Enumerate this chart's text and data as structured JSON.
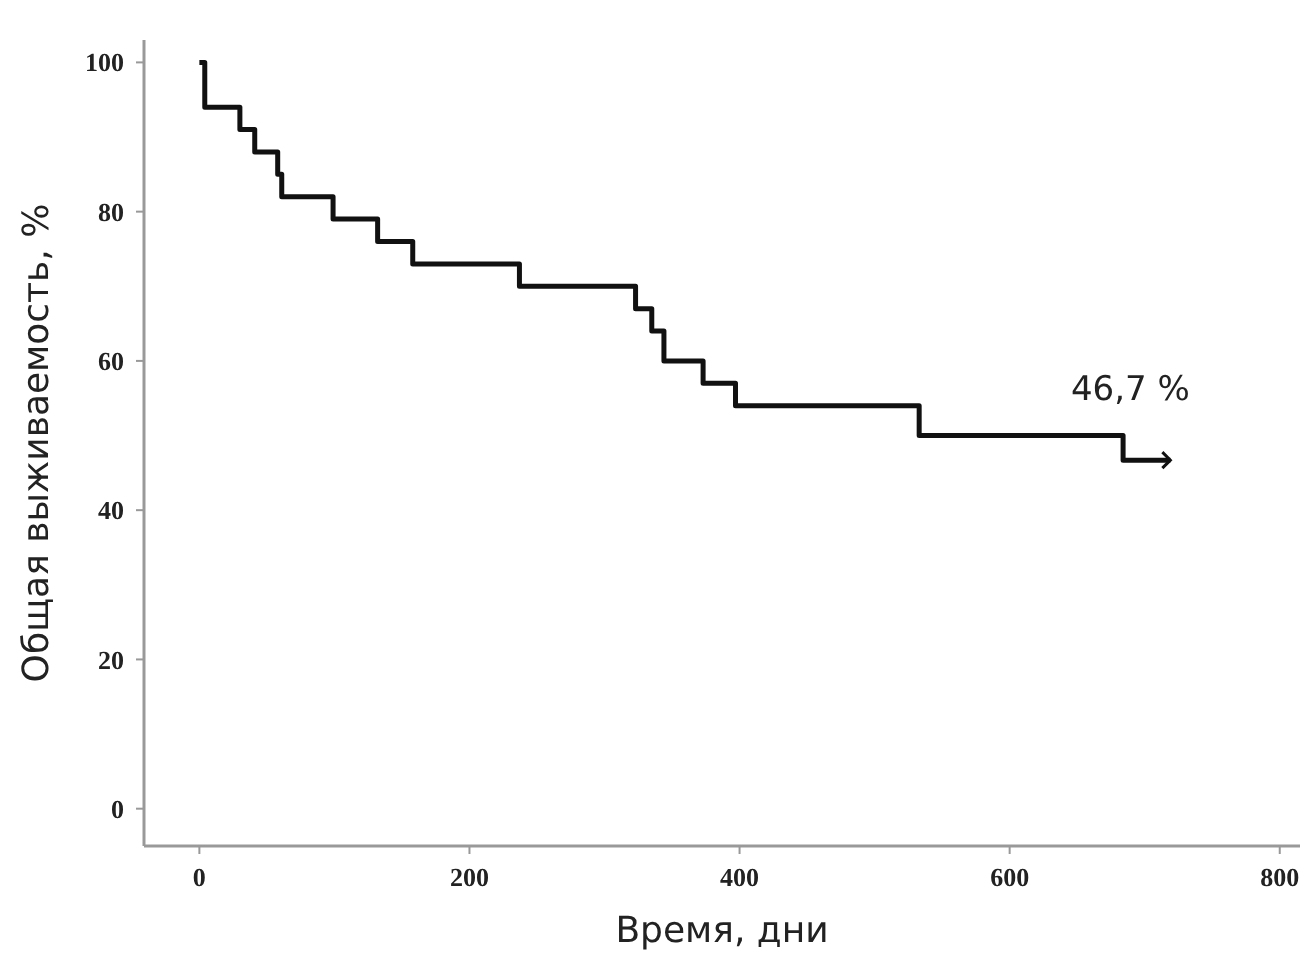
{
  "chart_data": {
    "type": "step",
    "xlabel": "Время, дни",
    "ylabel": "Общая выживаемость, %",
    "x": [
      0,
      4,
      30,
      41,
      58,
      61,
      99,
      132,
      158,
      237,
      323,
      335,
      344,
      373,
      397,
      533,
      684,
      719
    ],
    "values": [
      100,
      94,
      91,
      88,
      85,
      82,
      79,
      76,
      73,
      70,
      67,
      64,
      60,
      57,
      54,
      50,
      46.7,
      46.7
    ],
    "color": "#111111",
    "xlim": [
      -41,
      815
    ],
    "ylim": [
      -5,
      103
    ],
    "xticks": [
      0,
      200,
      400,
      600,
      800
    ],
    "yticks": [
      0,
      20,
      40,
      60,
      80,
      100
    ],
    "grid": false,
    "annotations": [
      {
        "text": "46,7 %",
        "x": 719,
        "y": 46.7
      }
    ]
  }
}
